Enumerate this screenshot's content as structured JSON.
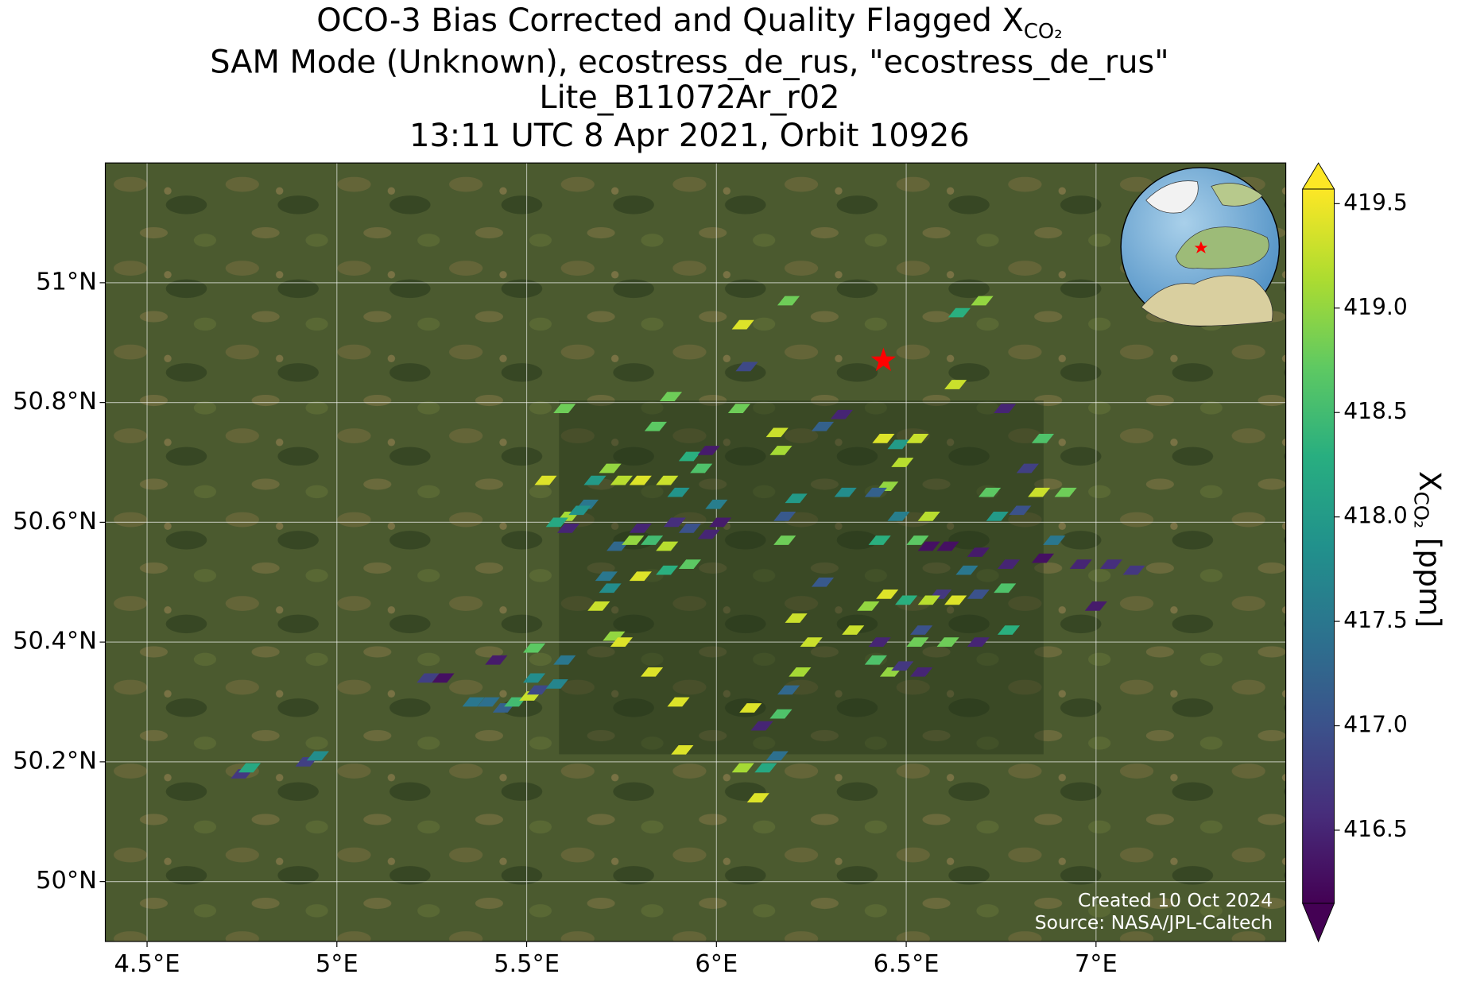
{
  "chart_data": {
    "type": "map",
    "title_lines": [
      "SAM Mode (Unknown), ecostress_de_rus, \"ecostress_de_rus\"",
      "Lite_B11072Ar_r02",
      "13:11 UTC 8 Apr 2021, Orbit 10926"
    ],
    "title_main": "OCO-3 Bias Corrected and Quality Flagged X",
    "title_sub": "CO₂",
    "colorbar_label": "X",
    "colorbar_label_sub": "CO₂",
    "colorbar_label_unit": "[ppm]",
    "annotations": [
      "Created 10 Oct 2024",
      "Source: NASA/JPL-Caltech"
    ],
    "colormap": "viridis",
    "grid": true,
    "xlim": [
      4.39,
      7.5
    ],
    "ylim": [
      49.9,
      51.2
    ],
    "clim": [
      416.15,
      419.57
    ],
    "xticks": [
      {
        "value": 4.5,
        "label": "4.5°E"
      },
      {
        "value": 5,
        "label": "5°E"
      },
      {
        "value": 5.5,
        "label": "5.5°E"
      },
      {
        "value": 6,
        "label": "6°E"
      },
      {
        "value": 6.5,
        "label": "6.5°E"
      },
      {
        "value": 7,
        "label": "7°E"
      }
    ],
    "yticks": [
      {
        "value": 50,
        "label": "50°N"
      },
      {
        "value": 50.2,
        "label": "50.2°N"
      },
      {
        "value": 50.4,
        "label": "50.4°N"
      },
      {
        "value": 50.6,
        "label": "50.6°N"
      },
      {
        "value": 50.8,
        "label": "50.8°N"
      },
      {
        "value": 51,
        "label": "51°N"
      }
    ],
    "cticks": [
      {
        "value": 416.5,
        "label": "416.5"
      },
      {
        "value": 417,
        "label": "417.0"
      },
      {
        "value": 417.5,
        "label": "417.5"
      },
      {
        "value": 418,
        "label": "418.0"
      },
      {
        "value": 418.5,
        "label": "418.5"
      },
      {
        "value": 419,
        "label": "419.0"
      },
      {
        "value": 419.5,
        "label": "419.5"
      }
    ],
    "target_lon": 6.44,
    "target_lat": 50.87,
    "target_color": "#ff0000",
    "x": [
      4.75,
      4.77,
      4.92,
      4.95,
      5.24,
      5.28,
      5.36,
      5.4,
      5.44,
      5.47,
      5.51,
      5.53,
      5.52,
      5.58,
      5.6,
      5.52,
      5.42,
      5.73,
      5.75,
      5.83,
      5.9,
      5.91,
      6.07,
      6.11,
      6.13,
      6.16,
      6.12,
      6.09,
      6.17,
      6.19,
      6.22,
      6.25,
      6.21,
      6.28,
      6.18,
      6.18,
      6.21,
      6.16,
      6.17,
      6.28,
      6.33,
      6.06,
      5.88,
      5.6,
      6.07,
      6.08,
      6.19,
      6.7,
      6.64,
      6.63,
      6.76,
      6.44,
      6.48,
      6.53,
      6.49,
      6.45,
      6.48,
      6.42,
      6.34,
      6.56,
      6.53,
      6.43,
      6.56,
      6.61,
      6.72,
      6.74,
      6.86,
      6.82,
      6.8,
      6.92,
      6.85,
      6.89,
      6.86,
      6.96,
      7.04,
      7.1,
      7.0,
      6.77,
      6.69,
      6.66,
      6.76,
      6.69,
      6.63,
      6.59,
      6.56,
      6.5,
      6.45,
      6.4,
      6.36,
      6.43,
      6.53,
      6.54,
      6.61,
      6.69,
      6.77,
      6.46,
      6.54,
      6.42,
      6.49,
      5.72,
      5.69,
      5.71,
      5.74,
      5.78,
      5.8,
      5.83,
      5.87,
      5.8,
      5.87,
      5.93,
      5.89,
      5.93,
      5.98,
      6.01,
      6.0,
      5.9,
      5.87,
      5.8,
      5.75,
      5.72,
      5.68,
      5.66,
      5.61,
      5.58,
      5.61,
      5.55,
      5.64,
      5.93,
      5.98,
      5.84,
      5.96
    ],
    "y": [
      50.18,
      50.19,
      50.2,
      50.21,
      50.34,
      50.34,
      50.3,
      50.3,
      50.29,
      50.3,
      50.31,
      50.32,
      50.34,
      50.33,
      50.37,
      50.39,
      50.37,
      50.41,
      50.4,
      50.35,
      50.3,
      50.22,
      50.19,
      50.14,
      50.19,
      50.21,
      50.26,
      50.29,
      50.28,
      50.32,
      50.35,
      50.4,
      50.44,
      50.5,
      50.57,
      50.61,
      50.64,
      50.75,
      50.72,
      50.76,
      50.78,
      50.79,
      50.81,
      50.79,
      50.93,
      50.86,
      50.97,
      50.97,
      50.95,
      50.83,
      50.79,
      50.74,
      50.73,
      50.74,
      50.7,
      50.66,
      50.61,
      50.65,
      50.65,
      50.61,
      50.57,
      50.57,
      50.56,
      50.56,
      50.65,
      50.61,
      50.74,
      50.69,
      50.62,
      50.65,
      50.65,
      50.57,
      50.54,
      50.53,
      50.53,
      50.52,
      50.46,
      50.53,
      50.55,
      50.52,
      50.49,
      50.48,
      50.47,
      50.48,
      50.47,
      50.47,
      50.48,
      50.46,
      50.42,
      50.4,
      50.4,
      50.42,
      50.4,
      50.4,
      50.42,
      50.35,
      50.35,
      50.37,
      50.36,
      50.49,
      50.46,
      50.51,
      50.56,
      50.57,
      50.59,
      50.57,
      50.56,
      50.51,
      50.52,
      50.53,
      50.6,
      50.59,
      50.58,
      50.6,
      50.63,
      50.65,
      50.67,
      50.67,
      50.67,
      50.69,
      50.67,
      50.63,
      50.61,
      50.6,
      50.59,
      50.67,
      50.62,
      50.71,
      50.72,
      50.76,
      50.69
    ],
    "values": [
      416.7,
      418.2,
      416.8,
      417.8,
      416.8,
      416.3,
      417.5,
      417.4,
      417.2,
      418.5,
      419.3,
      416.9,
      417.8,
      417.7,
      417.5,
      418.7,
      416.4,
      419.0,
      419.4,
      419.4,
      419.4,
      419.4,
      419.1,
      419.4,
      418.2,
      417.4,
      416.5,
      419.4,
      418.6,
      417.3,
      419.1,
      419.3,
      419.3,
      417.1,
      418.8,
      417.1,
      418.0,
      419.3,
      419.1,
      417.2,
      416.5,
      418.8,
      418.8,
      418.8,
      419.4,
      416.9,
      418.8,
      419.0,
      418.3,
      419.3,
      416.5,
      419.4,
      418.0,
      419.3,
      419.2,
      419.0,
      417.6,
      417.2,
      417.8,
      419.2,
      418.7,
      418.3,
      416.3,
      416.3,
      418.7,
      418.0,
      418.6,
      416.8,
      417.0,
      418.8,
      419.3,
      417.5,
      416.3,
      416.5,
      416.6,
      416.7,
      416.4,
      416.5,
      416.4,
      417.5,
      418.6,
      417.0,
      419.4,
      416.7,
      419.2,
      418.3,
      419.4,
      419.0,
      419.3,
      416.5,
      418.8,
      417.0,
      418.8,
      416.5,
      418.3,
      419.0,
      416.5,
      418.6,
      416.7,
      417.8,
      419.3,
      417.5,
      417.3,
      419.0,
      416.5,
      418.5,
      419.2,
      419.4,
      418.3,
      418.7,
      416.6,
      417.0,
      416.5,
      416.4,
      417.6,
      417.9,
      419.3,
      419.4,
      419.2,
      419.0,
      418.0,
      417.5,
      419.1,
      418.2,
      416.5,
      419.4,
      417.9,
      418.3,
      416.4,
      418.7,
      418.6
    ]
  }
}
